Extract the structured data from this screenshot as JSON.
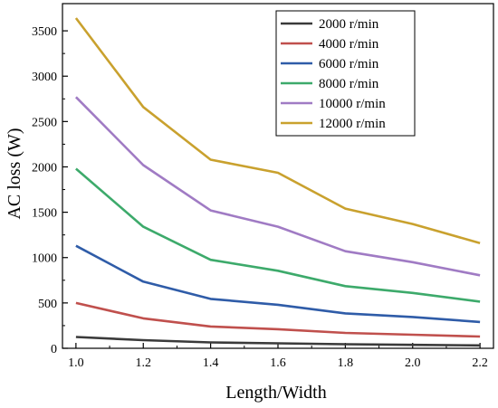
{
  "chart_data": {
    "type": "line",
    "title": "",
    "xlabel": "Length/Width",
    "ylabel": "AC loss (W)",
    "x": [
      1.0,
      1.2,
      1.4,
      1.6,
      1.8,
      2.0,
      2.2
    ],
    "x_tick_labels": [
      "1.0",
      "1.2",
      "1.4",
      "1.6",
      "1.8",
      "2.0",
      "2.2"
    ],
    "xlim": [
      0.96,
      2.24
    ],
    "ylim": [
      0,
      3800
    ],
    "y_ticks": [
      0,
      500,
      1000,
      1500,
      2000,
      2500,
      3000,
      3500
    ],
    "y_tick_labels": [
      "0",
      "500",
      "1000",
      "1500",
      "2000",
      "2500",
      "3000",
      "3500"
    ],
    "grid": false,
    "legend_position": "top-right",
    "series": [
      {
        "name": "2000 r/min",
        "color": "#3a3a3a",
        "values": [
          125,
          90,
          65,
          55,
          45,
          38,
          32
        ]
      },
      {
        "name": "4000 r/min",
        "color": "#c0504d",
        "values": [
          500,
          330,
          240,
          210,
          170,
          150,
          130
        ]
      },
      {
        "name": "6000 r/min",
        "color": "#2f5ca8",
        "values": [
          1130,
          735,
          545,
          480,
          385,
          345,
          290
        ]
      },
      {
        "name": "8000 r/min",
        "color": "#3daa6b",
        "values": [
          1980,
          1340,
          975,
          855,
          685,
          610,
          515
        ]
      },
      {
        "name": "10000 r/min",
        "color": "#a07bc4",
        "values": [
          2770,
          2020,
          1520,
          1340,
          1070,
          950,
          805
        ]
      },
      {
        "name": "12000 r/min",
        "color": "#c9a12e",
        "values": [
          3640,
          2660,
          2080,
          1935,
          1540,
          1370,
          1160
        ]
      }
    ]
  }
}
